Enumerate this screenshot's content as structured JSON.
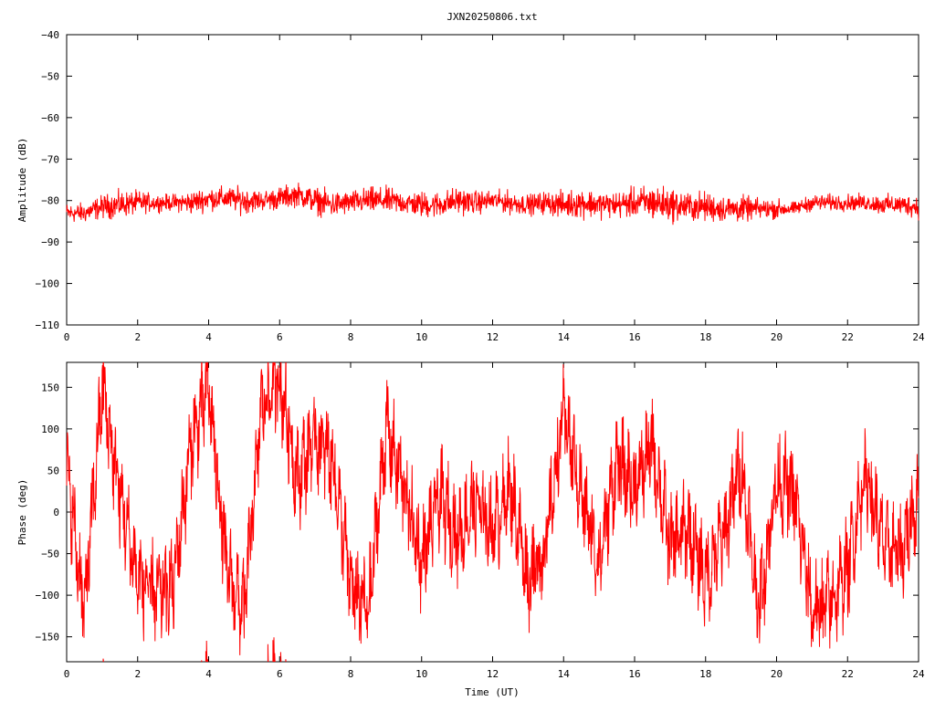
{
  "title": "JXN20250806.txt",
  "colors": {
    "trace": "#ff0000",
    "frame": "#000000",
    "background": "#ffffff"
  },
  "chart_data": [
    {
      "type": "line",
      "ylabel": "Amplitude (dB)",
      "xlabel": "",
      "xlim": [
        0,
        24
      ],
      "ylim": [
        -110,
        -40
      ],
      "xticks": [
        0,
        2,
        4,
        6,
        8,
        10,
        12,
        14,
        16,
        18,
        20,
        22,
        24
      ],
      "yticks": [
        -110,
        -100,
        -90,
        -80,
        -70,
        -60,
        -50,
        -40
      ],
      "grid": false,
      "series_envelope": {
        "x": [
          0,
          0.5,
          1,
          1.5,
          2,
          2.5,
          3,
          3.5,
          4,
          4.5,
          5,
          5.5,
          6,
          6.5,
          7,
          7.5,
          8,
          8.5,
          9,
          9.5,
          10,
          10.5,
          11,
          11.5,
          12,
          12.5,
          13,
          13.5,
          14,
          14.5,
          15,
          15.5,
          16,
          16.5,
          17,
          17.5,
          18,
          18.5,
          19,
          19.5,
          20,
          20.5,
          21,
          21.5,
          22,
          22.5,
          23,
          23.5,
          24
        ],
        "ymin": [
          -86,
          -86,
          -85,
          -85,
          -84,
          -83,
          -83,
          -84,
          -83,
          -83,
          -84,
          -83,
          -83,
          -82,
          -84,
          -85,
          -84,
          -84,
          -84,
          -84,
          -85,
          -85,
          -84,
          -84,
          -83,
          -84,
          -84,
          -84,
          -85,
          -85,
          -85,
          -85,
          -85,
          -86,
          -86,
          -86,
          -86,
          -86,
          -86,
          -85,
          -85,
          -84,
          -83,
          -83,
          -83,
          -83,
          -84,
          -84,
          -85
        ],
        "ymax": [
          -80,
          -80,
          -78,
          -77,
          -77,
          -78,
          -78,
          -77,
          -76,
          -76,
          -76,
          -77,
          -76,
          -75,
          -76,
          -77,
          -77,
          -76,
          -76,
          -77,
          -77,
          -77,
          -76,
          -77,
          -77,
          -77,
          -78,
          -77,
          -77,
          -76,
          -77,
          -77,
          -76,
          -75,
          -76,
          -77,
          -77,
          -78,
          -78,
          -79,
          -79,
          -80,
          -78,
          -78,
          -78,
          -78,
          -78,
          -78,
          -78
        ]
      }
    },
    {
      "type": "line",
      "ylabel": "Phase (deg)",
      "xlabel": "Time (UT)",
      "xlim": [
        0,
        24
      ],
      "ylim": [
        -180,
        180
      ],
      "xticks": [
        0,
        2,
        4,
        6,
        8,
        10,
        12,
        14,
        16,
        18,
        20,
        22,
        24
      ],
      "yticks": [
        -150,
        -100,
        -50,
        0,
        50,
        100,
        150
      ],
      "grid": false,
      "series_trend": {
        "x": [
          0,
          0.5,
          1,
          1.5,
          2,
          2.5,
          3,
          3.5,
          4,
          4.5,
          5,
          5.5,
          6,
          6.5,
          7,
          7.5,
          8,
          8.5,
          9,
          9.5,
          10,
          10.5,
          11,
          11.5,
          12,
          12.5,
          13,
          13.5,
          14,
          14.5,
          15,
          15.5,
          16,
          16.5,
          17,
          17.5,
          18,
          18.5,
          19,
          19.5,
          20,
          20.5,
          21,
          21.5,
          22,
          22.5,
          23,
          23.5,
          24
        ],
        "y": [
          50,
          -120,
          150,
          20,
          -80,
          -100,
          -90,
          80,
          150,
          -70,
          -120,
          130,
          160,
          40,
          90,
          60,
          -90,
          -120,
          100,
          30,
          -60,
          20,
          -30,
          10,
          -20,
          30,
          -80,
          -40,
          120,
          20,
          -60,
          60,
          30,
          80,
          -40,
          -20,
          -80,
          -30,
          60,
          -120,
          40,
          20,
          -120,
          -110,
          -70,
          50,
          -40,
          -50,
          20
        ]
      }
    }
  ]
}
